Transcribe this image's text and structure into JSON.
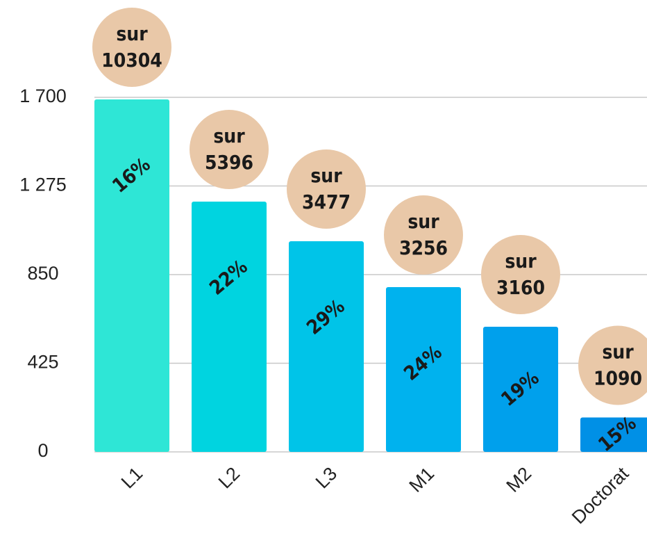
{
  "chart_data": {
    "type": "bar",
    "categories": [
      "L1",
      "L2",
      "L3",
      "M1",
      "M2",
      "Doctorat"
    ],
    "values": [
      1690,
      1200,
      1010,
      790,
      600,
      165
    ],
    "colors": [
      "#2ee6d6",
      "#00d4e0",
      "#00c4e8",
      "#00b2ee",
      "#00a0ec",
      "#0090e6"
    ],
    "annotations": [
      {
        "label": "16%",
        "prefix": "sur",
        "total": "10304"
      },
      {
        "label": "22%",
        "prefix": "sur",
        "total": "5396"
      },
      {
        "label": "29%",
        "prefix": "sur",
        "total": "3477"
      },
      {
        "label": "24%",
        "prefix": "sur",
        "total": "3256"
      },
      {
        "label": "19%",
        "prefix": "sur",
        "total": "3160"
      },
      {
        "label": "15%",
        "prefix": "sur",
        "total": "1090"
      }
    ],
    "badge_color": "#e9c8a8",
    "ylim": [
      0,
      1700
    ],
    "yticks": [
      0,
      425,
      850,
      {
        "value": 1275,
        "label": "1 275"
      },
      {
        "value": 1700,
        "label": "1 700"
      }
    ],
    "grid": true
  }
}
